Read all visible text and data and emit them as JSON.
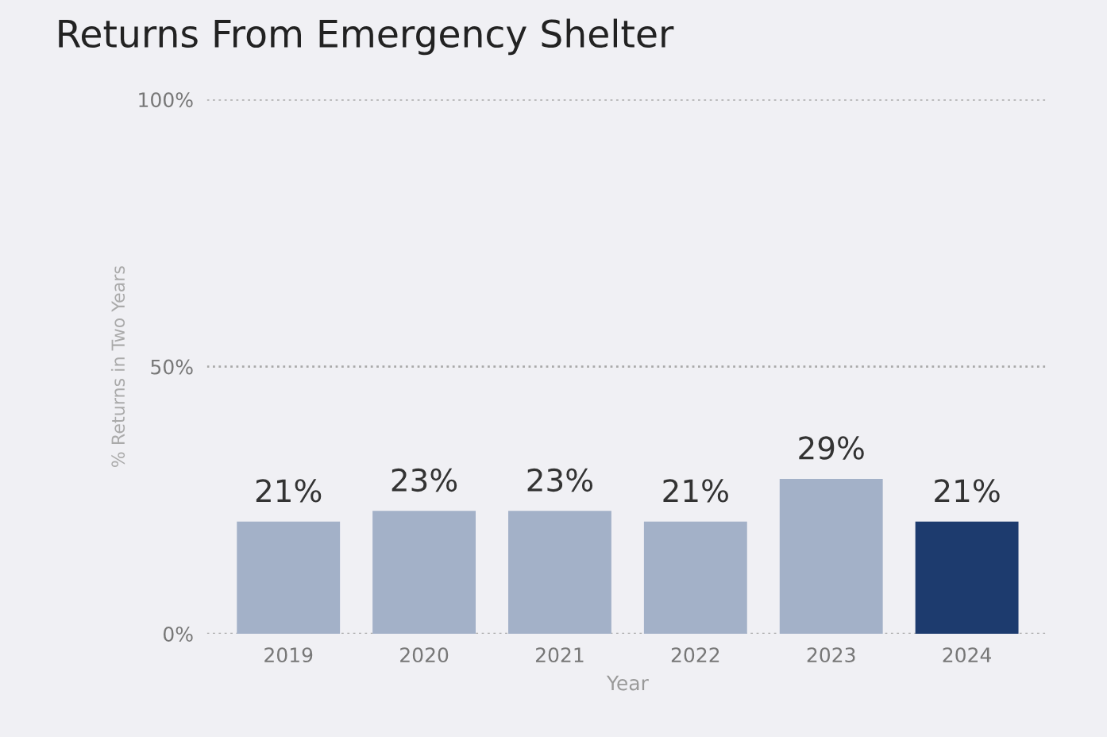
{
  "chart_data": {
    "type": "bar",
    "title": "Returns From Emergency Shelter",
    "xlabel": "Year",
    "ylabel": "% Returns in Two Years",
    "categories": [
      "2019",
      "2020",
      "2021",
      "2022",
      "2023",
      "2024"
    ],
    "values": [
      21,
      23,
      23,
      21,
      29,
      21
    ],
    "value_labels": [
      "21%",
      "23%",
      "23%",
      "21%",
      "29%",
      "21%"
    ],
    "colors": [
      "#a3b1c8",
      "#a3b1c8",
      "#a3b1c8",
      "#a3b1c8",
      "#a3b1c8",
      "#1d3b6e"
    ],
    "ylim": [
      0,
      100
    ],
    "yticks": [
      {
        "value": 0,
        "label": "0%"
      },
      {
        "value": 50,
        "label": "50%"
      },
      {
        "value": 100,
        "label": "100%"
      }
    ],
    "grid": "y",
    "line_style": "dotted",
    "legend": false
  }
}
